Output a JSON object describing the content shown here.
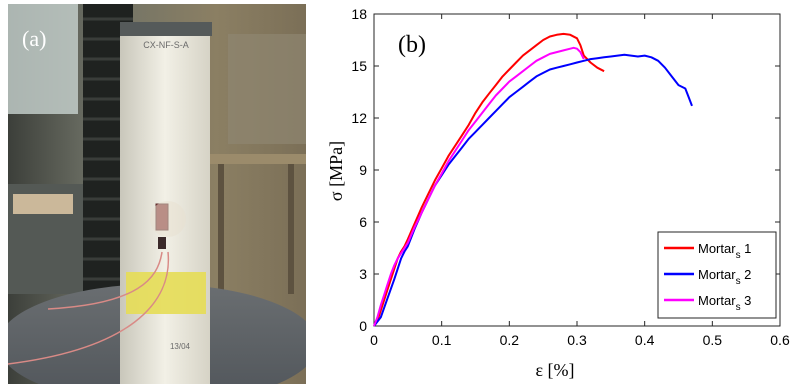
{
  "panel_a": {
    "label": "(a)",
    "specimen_label": "CX-NF-S-A",
    "bottom_label": "13/04"
  },
  "chart_data": {
    "type": "line",
    "panel_label": "(b)",
    "title": "",
    "xlabel": "ε [%]",
    "ylabel": "σ [MPa]",
    "xlim": [
      0,
      0.6
    ],
    "ylim": [
      0,
      18
    ],
    "xticks": [
      "0",
      "0.1",
      "0.2",
      "0.3",
      "0.4",
      "0.5",
      "0.6"
    ],
    "yticks": [
      "0",
      "3",
      "6",
      "9",
      "12",
      "15",
      "18"
    ],
    "grid": false,
    "legend_position": "bottom-right",
    "series": [
      {
        "name": "Mortar",
        "subscript": "s",
        "suffix": " 1",
        "color": "#ff0000",
        "x": [
          0.0,
          0.005,
          0.01,
          0.015,
          0.02,
          0.025,
          0.03,
          0.035,
          0.04,
          0.045,
          0.05,
          0.06,
          0.07,
          0.08,
          0.09,
          0.1,
          0.11,
          0.12,
          0.13,
          0.14,
          0.15,
          0.16,
          0.17,
          0.18,
          0.19,
          0.2,
          0.21,
          0.22,
          0.23,
          0.24,
          0.25,
          0.26,
          0.27,
          0.28,
          0.29,
          0.3,
          0.305,
          0.31,
          0.32,
          0.33,
          0.34
        ],
        "y": [
          0.0,
          0.3,
          0.9,
          1.5,
          2.1,
          2.7,
          3.3,
          3.9,
          4.3,
          4.6,
          5.0,
          5.9,
          6.8,
          7.6,
          8.4,
          9.1,
          9.8,
          10.4,
          11.0,
          11.6,
          12.3,
          12.9,
          13.4,
          13.9,
          14.4,
          14.8,
          15.2,
          15.6,
          15.9,
          16.2,
          16.5,
          16.7,
          16.8,
          16.85,
          16.8,
          16.6,
          16.2,
          15.6,
          15.2,
          14.9,
          14.7
        ]
      },
      {
        "name": "Mortar",
        "subscript": "s",
        "suffix": " 2",
        "color": "#0000ff",
        "x": [
          0.0,
          0.01,
          0.02,
          0.03,
          0.04,
          0.045,
          0.05,
          0.06,
          0.07,
          0.08,
          0.09,
          0.1,
          0.11,
          0.12,
          0.13,
          0.14,
          0.15,
          0.16,
          0.17,
          0.18,
          0.19,
          0.2,
          0.21,
          0.22,
          0.23,
          0.24,
          0.25,
          0.26,
          0.27,
          0.28,
          0.29,
          0.3,
          0.31,
          0.32,
          0.33,
          0.34,
          0.35,
          0.36,
          0.37,
          0.38,
          0.39,
          0.4,
          0.41,
          0.42,
          0.43,
          0.44,
          0.45,
          0.46,
          0.465,
          0.47
        ],
        "y": [
          0.0,
          0.5,
          1.6,
          2.7,
          3.9,
          4.3,
          4.6,
          5.6,
          6.5,
          7.3,
          8.1,
          8.7,
          9.3,
          9.8,
          10.3,
          10.8,
          11.2,
          11.6,
          12.0,
          12.4,
          12.8,
          13.2,
          13.5,
          13.8,
          14.1,
          14.4,
          14.6,
          14.8,
          14.9,
          15.0,
          15.1,
          15.2,
          15.3,
          15.4,
          15.45,
          15.5,
          15.55,
          15.6,
          15.65,
          15.6,
          15.55,
          15.6,
          15.5,
          15.3,
          14.9,
          14.4,
          13.9,
          13.7,
          13.2,
          12.7
        ]
      },
      {
        "name": "Mortar",
        "subscript": "s",
        "suffix": " 3",
        "color": "#ff00ff",
        "x": [
          0.0,
          0.005,
          0.01,
          0.015,
          0.02,
          0.025,
          0.03,
          0.035,
          0.04,
          0.045,
          0.05,
          0.06,
          0.07,
          0.08,
          0.09,
          0.1,
          0.11,
          0.12,
          0.13,
          0.14,
          0.15,
          0.16,
          0.17,
          0.18,
          0.19,
          0.2,
          0.21,
          0.22,
          0.23,
          0.24,
          0.25,
          0.26,
          0.27,
          0.28,
          0.29,
          0.295,
          0.3,
          0.305,
          0.31
        ],
        "y": [
          0.0,
          0.5,
          1.2,
          1.8,
          2.4,
          3.0,
          3.5,
          3.9,
          4.2,
          4.5,
          4.8,
          5.7,
          6.5,
          7.3,
          8.1,
          8.8,
          9.5,
          10.1,
          10.7,
          11.3,
          11.8,
          12.3,
          12.8,
          13.3,
          13.7,
          14.1,
          14.4,
          14.7,
          15.0,
          15.3,
          15.5,
          15.7,
          15.8,
          15.9,
          16.0,
          16.05,
          16.0,
          15.8,
          15.4
        ]
      }
    ]
  }
}
